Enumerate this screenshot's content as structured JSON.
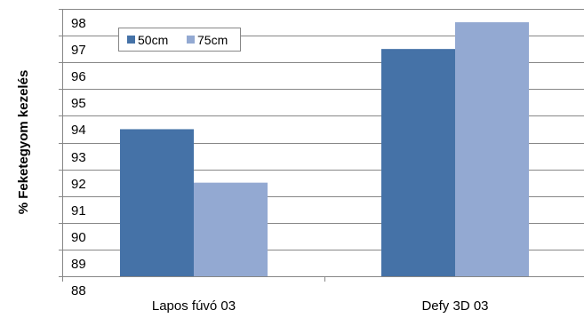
{
  "chart_data": {
    "type": "bar",
    "title": "",
    "xlabel": "",
    "ylabel": "% Feketegyom kezelés",
    "categories": [
      "Lapos fúvó 03",
      "Defy 3D 03"
    ],
    "series": [
      {
        "name": "50cm",
        "color": "#4572A7",
        "values": [
          93.5,
          96.5
        ]
      },
      {
        "name": "75cm",
        "color": "#93A9D2",
        "values": [
          91.5,
          97.5
        ]
      }
    ],
    "ylim": [
      88,
      98
    ],
    "yticks": [
      88,
      89,
      90,
      91,
      92,
      93,
      94,
      95,
      96,
      97,
      98
    ],
    "ytick_labels": [
      "88",
      "89",
      "90",
      "91",
      "92",
      "93",
      "94",
      "95",
      "96",
      "97",
      "98"
    ],
    "grid": true,
    "legend_position": "top-left"
  }
}
